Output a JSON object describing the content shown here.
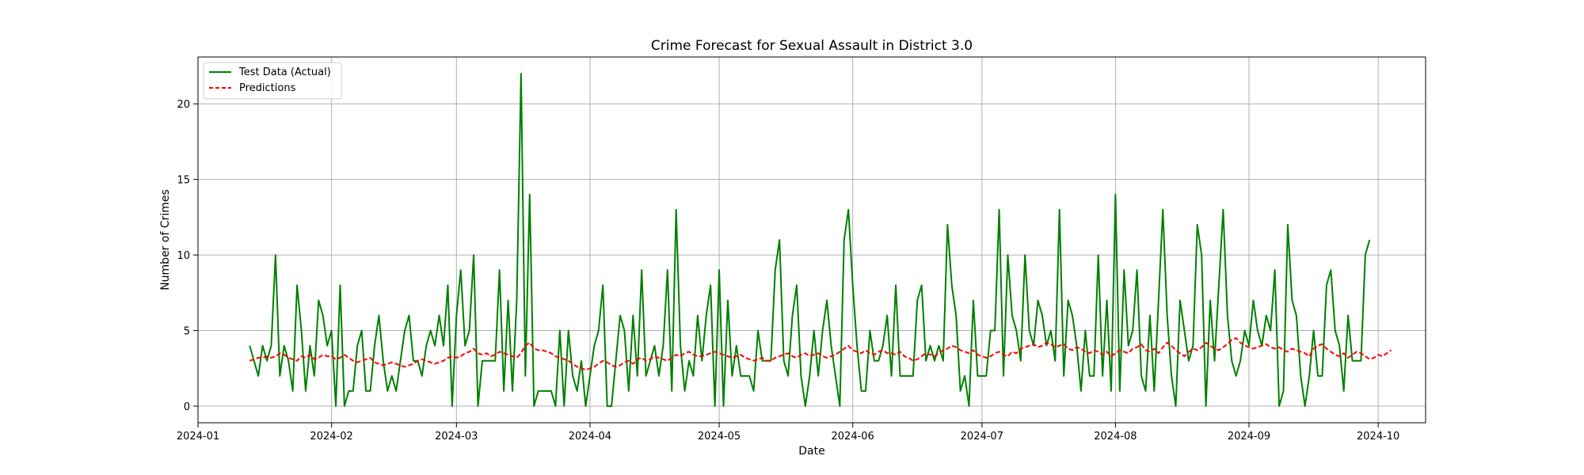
{
  "chart_data": {
    "type": "line",
    "title": "Crime Forecast for Sexual Assault in District 3.0",
    "xlabel": "Date",
    "ylabel": "Number of Crimes",
    "x_start": "2024-01-13",
    "x_end": "2024-09-23",
    "xlim": [
      "2024-01-01",
      "2024-10-12"
    ],
    "ylim": [
      -1.1,
      23.1
    ],
    "x_ticks": [
      "2024-01",
      "2024-02",
      "2024-03",
      "2024-04",
      "2024-05",
      "2024-06",
      "2024-07",
      "2024-08",
      "2024-09",
      "2024-10"
    ],
    "y_ticks": [
      "0",
      "5",
      "10",
      "15",
      "20"
    ],
    "grid": true,
    "legend_position": "top-left",
    "series": [
      {
        "name": "Test Data (Actual)",
        "color": "#008000",
        "style": "solid",
        "values": [
          4,
          3,
          2,
          4,
          3,
          4,
          10,
          2,
          4,
          3,
          1,
          8,
          5,
          1,
          4,
          2,
          7,
          6,
          4,
          5,
          0,
          8,
          0,
          1,
          1,
          4,
          5,
          1,
          1,
          4,
          6,
          3,
          1,
          2,
          1,
          3,
          5,
          6,
          3,
          3,
          2,
          4,
          5,
          4,
          6,
          4,
          8,
          0,
          6,
          9,
          4,
          5,
          10,
          0,
          3,
          3,
          3,
          3,
          9,
          1,
          7,
          1,
          7,
          22,
          2,
          14,
          0,
          1,
          1,
          1,
          1,
          0,
          5,
          0,
          5,
          2,
          1,
          3,
          0,
          2,
          4,
          5,
          8,
          0,
          0,
          3,
          6,
          5,
          1,
          6,
          2,
          9,
          2,
          3,
          4,
          2,
          4,
          9,
          1,
          13,
          4,
          1,
          3,
          2,
          6,
          3,
          6,
          8,
          0,
          9,
          0,
          7,
          2,
          4,
          2,
          2,
          2,
          1,
          5,
          3,
          3,
          3,
          9,
          11,
          3,
          2,
          6,
          8,
          2,
          0,
          2,
          5,
          2,
          5,
          7,
          4,
          2,
          0,
          11,
          13,
          8,
          4,
          1,
          1,
          5,
          3,
          3,
          4,
          6,
          2,
          8,
          2,
          2,
          2,
          2,
          7,
          8,
          3,
          4,
          3,
          4,
          3,
          12,
          8,
          6,
          1,
          2,
          0,
          7,
          2,
          2,
          2,
          5,
          5,
          13,
          2,
          10,
          6,
          5,
          3,
          10,
          5,
          4,
          7,
          6,
          4,
          5,
          3,
          13,
          2,
          7,
          6,
          4,
          1,
          5,
          2,
          2,
          10,
          2,
          7,
          1,
          14,
          1,
          9,
          4,
          5,
          9,
          2,
          1,
          6,
          1,
          7,
          13,
          6,
          2,
          0,
          7,
          5,
          3,
          4,
          12,
          10,
          0,
          7,
          3,
          8,
          13,
          6,
          3,
          2,
          3,
          5,
          4,
          7,
          5,
          4,
          6,
          5,
          9,
          0,
          1,
          12,
          7,
          6,
          2,
          0,
          2,
          5,
          2,
          2,
          8,
          9,
          5,
          4,
          1,
          6,
          3,
          3,
          3,
          10,
          11
        ]
      },
      {
        "name": "Predictions",
        "color": "#ff0000",
        "style": "dashed",
        "values": [
          3.0,
          3.1,
          3.2,
          3.2,
          3.3,
          3.2,
          3.3,
          3.5,
          3.4,
          3.2,
          3.1,
          3.0,
          3.3,
          3.2,
          3.4,
          3.1,
          3.2,
          3.4,
          3.3,
          3.3,
          3.1,
          3.2,
          3.4,
          3.2,
          3.0,
          2.9,
          3.0,
          3.1,
          3.2,
          2.9,
          2.8,
          2.7,
          2.8,
          2.9,
          2.8,
          2.7,
          2.6,
          2.7,
          2.8,
          3.0,
          3.1,
          3.0,
          2.9,
          2.8,
          2.9,
          3.0,
          3.2,
          3.3,
          3.2,
          3.3,
          3.5,
          3.6,
          3.8,
          3.5,
          3.4,
          3.5,
          3.3,
          3.4,
          3.6,
          3.5,
          3.4,
          3.3,
          3.2,
          3.5,
          4.0,
          4.2,
          3.8,
          3.7,
          3.7,
          3.6,
          3.5,
          3.3,
          3.2,
          3.1,
          3.0,
          2.8,
          2.6,
          2.5,
          2.4,
          2.5,
          2.6,
          2.8,
          3.0,
          2.9,
          2.7,
          2.6,
          2.7,
          2.9,
          3.0,
          2.8,
          3.1,
          3.2,
          3.0,
          3.1,
          3.3,
          3.2,
          3.1,
          3.0,
          3.2,
          3.4,
          3.3,
          3.5,
          3.6,
          3.4,
          3.3,
          3.3,
          3.4,
          3.5,
          3.6,
          3.5,
          3.4,
          3.3,
          3.2,
          3.3,
          3.4,
          3.2,
          3.1,
          3.0,
          3.1,
          3.2,
          3.0,
          3.0,
          3.2,
          3.3,
          3.4,
          3.5,
          3.3,
          3.2,
          3.4,
          3.5,
          3.3,
          3.4,
          3.5,
          3.3,
          3.2,
          3.3,
          3.4,
          3.6,
          3.8,
          4.0,
          3.7,
          3.6,
          3.5,
          3.7,
          3.5,
          3.4,
          3.6,
          3.7,
          3.5,
          3.5,
          3.4,
          3.6,
          3.3,
          3.2,
          3.0,
          3.1,
          3.3,
          3.5,
          3.4,
          3.3,
          3.5,
          3.7,
          3.8,
          4.0,
          3.9,
          3.7,
          3.6,
          3.5,
          3.7,
          3.4,
          3.3,
          3.2,
          3.3,
          3.5,
          3.6,
          3.4,
          3.3,
          3.6,
          3.5,
          3.8,
          3.9,
          4.0,
          4.1,
          3.9,
          4.0,
          4.2,
          4.1,
          3.9,
          4.0,
          4.1,
          3.8,
          3.7,
          3.9,
          3.8,
          3.6,
          3.5,
          3.7,
          3.6,
          3.4,
          3.6,
          3.3,
          3.5,
          3.7,
          3.6,
          3.5,
          3.8,
          3.9,
          4.1,
          3.7,
          3.6,
          3.8,
          3.5,
          3.9,
          4.2,
          4.0,
          3.7,
          3.5,
          3.3,
          3.6,
          3.8,
          3.7,
          3.9,
          4.2,
          4.0,
          3.8,
          3.7,
          3.9,
          4.1,
          4.4,
          4.5,
          4.2,
          4.0,
          3.9,
          3.8,
          3.9,
          4.0,
          4.1,
          3.9,
          3.8,
          3.9,
          3.7,
          3.6,
          3.8,
          3.7,
          3.6,
          3.5,
          3.3,
          3.8,
          4.0,
          4.1,
          3.8,
          3.6,
          3.4,
          3.3,
          3.5,
          3.2,
          3.4,
          3.6,
          3.5,
          3.3,
          3.1,
          3.2,
          3.4,
          3.3,
          3.5,
          3.7
        ]
      }
    ]
  }
}
